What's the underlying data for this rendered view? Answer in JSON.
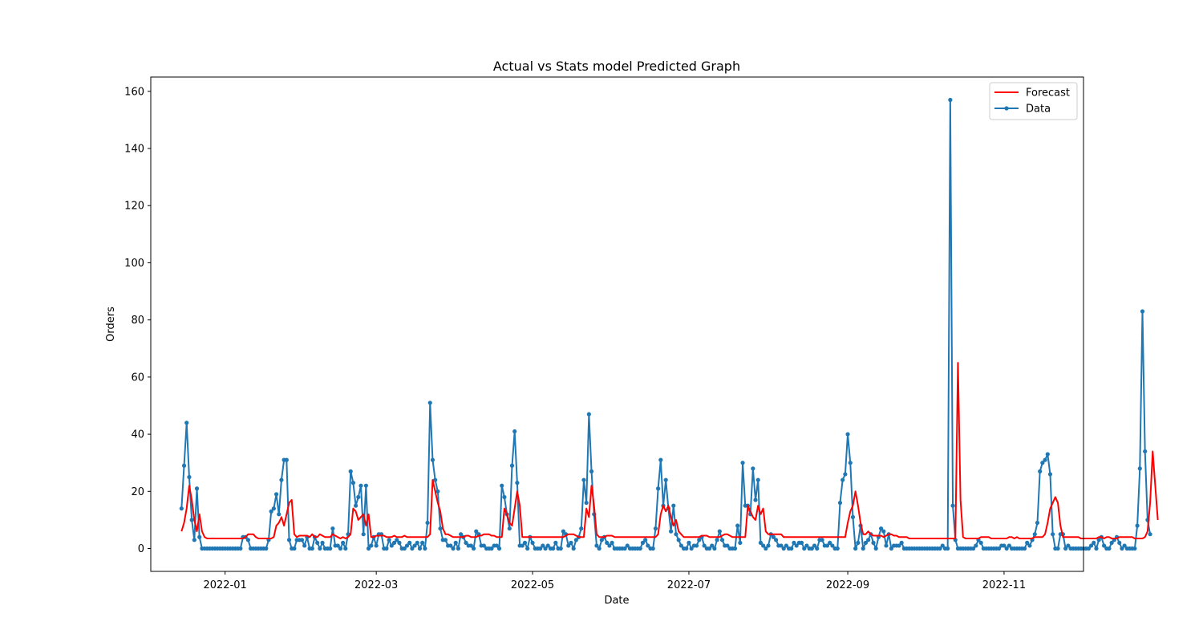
{
  "chart_data": {
    "type": "line",
    "title": "Actual vs Stats model Predicted Graph",
    "xlabel": "Date",
    "ylabel": "Orders",
    "x_start": "2021-12-15",
    "x_end": "2022-11-20",
    "xlim_days": [
      -12,
      352
    ],
    "ylim": [
      -8,
      165
    ],
    "yticks": [
      0,
      20,
      40,
      60,
      80,
      100,
      120,
      140,
      160
    ],
    "xticks": [
      {
        "label": "2022-01",
        "day": 17
      },
      {
        "label": "2022-03",
        "day": 76
      },
      {
        "label": "2022-05",
        "day": 137
      },
      {
        "label": "2022-07",
        "day": 198
      },
      {
        "label": "2022-09",
        "day": 260
      },
      {
        "label": "2022-11",
        "day": 321
      }
    ],
    "legend": {
      "position": "top-right",
      "entries": [
        "Forecast",
        "Data"
      ]
    },
    "colors": {
      "forecast": "#ff0000",
      "data": "#1f77b4"
    },
    "series": [
      {
        "name": "Data",
        "style": "line-with-markers",
        "values": [
          14,
          29,
          44,
          25,
          10,
          3,
          21,
          4,
          0,
          0,
          0,
          0,
          0,
          0,
          0,
          0,
          0,
          0,
          0,
          0,
          0,
          0,
          0,
          0,
          4,
          4,
          3,
          0,
          0,
          0,
          0,
          0,
          0,
          0,
          3,
          13,
          14,
          19,
          12,
          24,
          31,
          31,
          3,
          0,
          0,
          3,
          3,
          3,
          1,
          4,
          0,
          0,
          4,
          2,
          0,
          2,
          0,
          0,
          0,
          7,
          1,
          1,
          0,
          2,
          0,
          5,
          27,
          23,
          15,
          18,
          22,
          5,
          22,
          0,
          1,
          4,
          1,
          5,
          5,
          0,
          0,
          3,
          1,
          2,
          3,
          2,
          0,
          0,
          1,
          2,
          0,
          1,
          2,
          0,
          2,
          0,
          9,
          51,
          31,
          24,
          20,
          7,
          3,
          3,
          1,
          1,
          0,
          2,
          0,
          5,
          4,
          2,
          1,
          1,
          0,
          6,
          5,
          1,
          1,
          0,
          0,
          0,
          1,
          1,
          0,
          22,
          18,
          12,
          7,
          29,
          41,
          23,
          1,
          1,
          2,
          0,
          4,
          2,
          0,
          0,
          0,
          1,
          0,
          1,
          0,
          0,
          2,
          0,
          0,
          6,
          5,
          1,
          2,
          0,
          3,
          4,
          7,
          24,
          16,
          47,
          27,
          12,
          1,
          0,
          3,
          4,
          2,
          1,
          2,
          0,
          0,
          0,
          0,
          0,
          1,
          0,
          0,
          0,
          0,
          0,
          2,
          3,
          1,
          0,
          0,
          7,
          21,
          31,
          15,
          24,
          14,
          6,
          15,
          5,
          3,
          1,
          0,
          0,
          2,
          0,
          1,
          1,
          3,
          4,
          1,
          0,
          0,
          1,
          0,
          3,
          6,
          3,
          1,
          1,
          0,
          0,
          0,
          8,
          2,
          30,
          15,
          15,
          12,
          28,
          17,
          24,
          2,
          1,
          0,
          1,
          5,
          4,
          3,
          1,
          1,
          0,
          1,
          0,
          0,
          2,
          1,
          2,
          2,
          0,
          1,
          0,
          0,
          1,
          0,
          3,
          3,
          1,
          1,
          2,
          1,
          0,
          0,
          16,
          24,
          26,
          40,
          30,
          11,
          0,
          2,
          8,
          0,
          2,
          3,
          5,
          2,
          0,
          4,
          7,
          6,
          1,
          5,
          0,
          1,
          1,
          1,
          2,
          0,
          0,
          0,
          0,
          0,
          0,
          0,
          0,
          0,
          0,
          0,
          0,
          0,
          0,
          0,
          1,
          0,
          0,
          157,
          15,
          3,
          0,
          0,
          0,
          0,
          0,
          0,
          0,
          1,
          3,
          2,
          0,
          0,
          0,
          0,
          0,
          0,
          0,
          1,
          1,
          0,
          1,
          0,
          0,
          0,
          0,
          0,
          0,
          2,
          1,
          3,
          5,
          9,
          27,
          30,
          31,
          33,
          26,
          5,
          0,
          0,
          5,
          5,
          0,
          1,
          0,
          0,
          0,
          0,
          0,
          0,
          0,
          0,
          1,
          2,
          0,
          3,
          4,
          1,
          0,
          0,
          2,
          3,
          4,
          2,
          0,
          1,
          0,
          0,
          0,
          0,
          8,
          28,
          83,
          34,
          10,
          5
        ]
      },
      {
        "name": "Forecast",
        "style": "line",
        "values": [
          6,
          9,
          14,
          22,
          17,
          10,
          6,
          12,
          6,
          4,
          3.5,
          3.5,
          3.5,
          3.5,
          3.5,
          3.5,
          3.5,
          3.5,
          3.5,
          3.5,
          3.5,
          3.5,
          3.5,
          3.5,
          3.5,
          4,
          5,
          5,
          5,
          4,
          3.5,
          3.5,
          3.5,
          3.5,
          3.5,
          3.5,
          4,
          8,
          9,
          11,
          8,
          12,
          16,
          17,
          5,
          4,
          4.5,
          4.5,
          4.5,
          4.5,
          4,
          5,
          4,
          4,
          5,
          4.5,
          4,
          4,
          4,
          5,
          4.5,
          4,
          3.5,
          4,
          3.5,
          4,
          5,
          14,
          13,
          10,
          11,
          12,
          8,
          12,
          4,
          4,
          4.5,
          4.5,
          4.5,
          4.5,
          4,
          4,
          4,
          4.5,
          4,
          4,
          4,
          4.5,
          4,
          4,
          4,
          4,
          4,
          4,
          4,
          4,
          4,
          5,
          24,
          20,
          16,
          13,
          7,
          5,
          5,
          4.5,
          4,
          4,
          4,
          4,
          4,
          4.5,
          4.5,
          4,
          4,
          4,
          4.5,
          4.5,
          5,
          5,
          5,
          4.5,
          4.5,
          4,
          4,
          4,
          14,
          12,
          9,
          8,
          14,
          20,
          15,
          4,
          4,
          4,
          4,
          4,
          4,
          4,
          4,
          4,
          4,
          4,
          4,
          4,
          4,
          4,
          4,
          4,
          4.5,
          5,
          5,
          5,
          4.5,
          4,
          4,
          4,
          14,
          11,
          22,
          15,
          5,
          4,
          4,
          4,
          4.5,
          4.5,
          4.5,
          4,
          4,
          4,
          4,
          4,
          4,
          4,
          4,
          4,
          4,
          4,
          4,
          4,
          4,
          4,
          4,
          4,
          5,
          12,
          15,
          13,
          15,
          11,
          8,
          10,
          6,
          5,
          4,
          4,
          4,
          4,
          4,
          4,
          4,
          4.5,
          4.5,
          4.5,
          4,
          4,
          4,
          4,
          4,
          4.5,
          5,
          5,
          4.5,
          4,
          4,
          4,
          4,
          4,
          4,
          15,
          13,
          11,
          10,
          15,
          12,
          14,
          6,
          5,
          5,
          5,
          5,
          5,
          5,
          4,
          4,
          4,
          4,
          4,
          4,
          4,
          4,
          4,
          4,
          4,
          4,
          4,
          4,
          4,
          4,
          4,
          4,
          4,
          4,
          4,
          4,
          4,
          4,
          4,
          9,
          13,
          15,
          20,
          15,
          9,
          5,
          5,
          6,
          5,
          4.5,
          4.5,
          4.5,
          4.5,
          4,
          4.5,
          5,
          5,
          4.5,
          4.5,
          4,
          4,
          4,
          4,
          3.5,
          3.5,
          3.5,
          3.5,
          3.5,
          3.5,
          3.5,
          3.5,
          3.5,
          3.5,
          3.5,
          3.5,
          3.5,
          3.5,
          3.5,
          3.5,
          3.5,
          3.5,
          3.5,
          65,
          17,
          4,
          3.5,
          3.5,
          3.5,
          3.5,
          3.5,
          3.5,
          4,
          4,
          4,
          4,
          3.5,
          3.5,
          3.5,
          3.5,
          3.5,
          3.5,
          3.5,
          4,
          4,
          3.5,
          4,
          3.5,
          3.5,
          3.5,
          3.5,
          3.5,
          3.5,
          4,
          4,
          4,
          4,
          5,
          9,
          14,
          16,
          18,
          16,
          8,
          4,
          4,
          4,
          4,
          4,
          4,
          4,
          3.5,
          3.5,
          3.5,
          3.5,
          3.5,
          3.5,
          3.5,
          4,
          4,
          3.5,
          4,
          4,
          3.5,
          3.5,
          3.5,
          4,
          4,
          4,
          4,
          4,
          4,
          3.5,
          3.5,
          3.5,
          3.5,
          4,
          6,
          16,
          34,
          22,
          10
        ]
      }
    ]
  }
}
